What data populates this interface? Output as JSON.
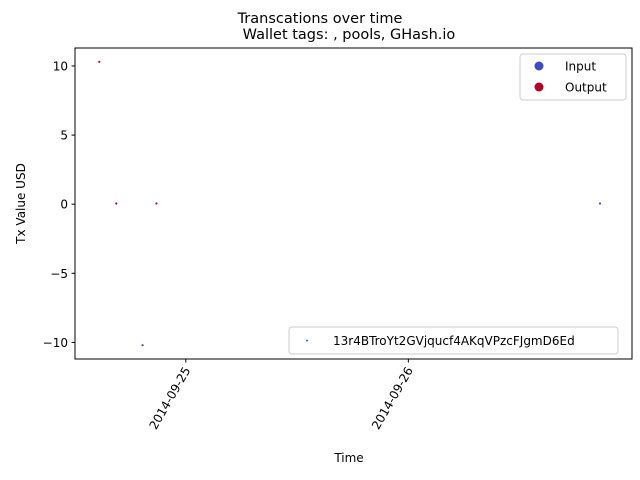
{
  "chart_data": {
    "type": "scatter",
    "suptitle": "Transcations over time",
    "title": "Wallet tags: , pools, GHash.io",
    "xlabel": "Time",
    "ylabel": "Tx Value USD",
    "x_ticks": [
      "2014-09-25",
      "2014-09-26"
    ],
    "y_ticks": [
      10,
      5,
      0,
      -5,
      -10
    ],
    "y_tick_labels": [
      "10",
      "5",
      "0",
      "−5",
      "−10"
    ],
    "xlim": [
      "2014-09-24 12:03",
      "2014-09-27 00:07"
    ],
    "ylim": [
      -11.2,
      11.3
    ],
    "grid": false,
    "legend_placement": "upper-right",
    "legend": [
      {
        "label": "Input",
        "color": "#3b4cc0"
      },
      {
        "label": "Output",
        "color": "#b40426"
      }
    ],
    "address_legend_placement": "lower-right",
    "address_legend": {
      "label": "13r4BTroYt2GVjqucf4AKqVPzcFJgmD6Ed",
      "color": "#1f77b4"
    },
    "series": [
      {
        "name": "Output",
        "color": "#b40426",
        "points": [
          {
            "x": "2014-09-24 14:40",
            "y": 10.3
          },
          {
            "x": "2014-09-24 16:30",
            "y": 0.05
          },
          {
            "x": "2014-09-24 20:50",
            "y": 0.05
          }
        ]
      },
      {
        "name": "Input",
        "color": "#3b4cc0",
        "points": [
          {
            "x": "2014-09-24 19:20",
            "y": -10.2
          },
          {
            "x": "2014-09-26 20:40",
            "y": 0.05
          }
        ]
      }
    ]
  }
}
